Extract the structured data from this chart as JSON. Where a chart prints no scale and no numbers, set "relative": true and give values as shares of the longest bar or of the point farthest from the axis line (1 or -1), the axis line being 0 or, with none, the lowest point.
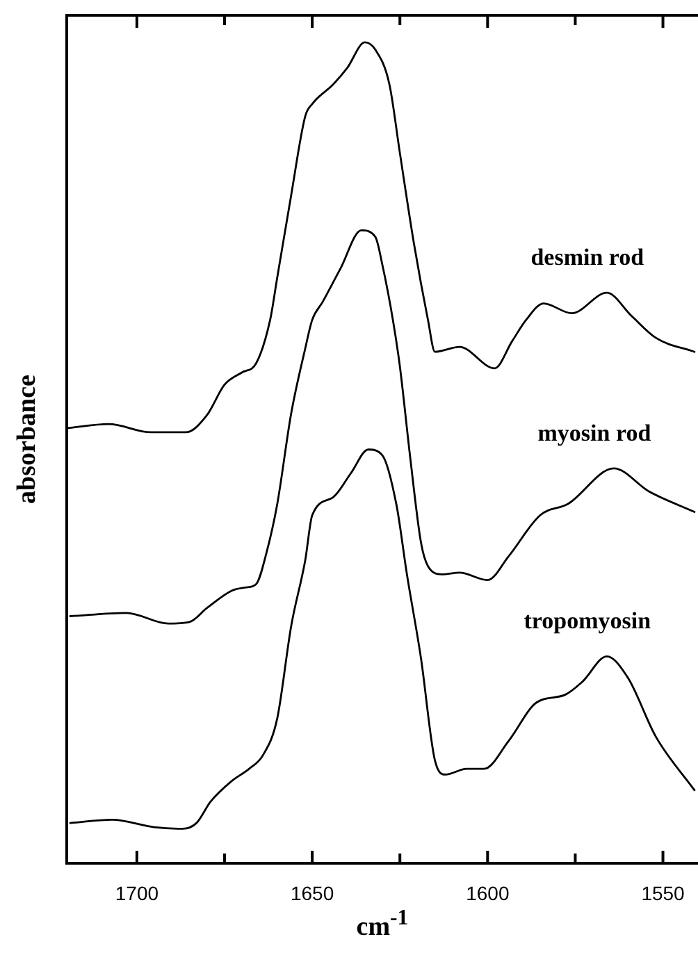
{
  "chart_data": {
    "type": "line",
    "xlabel": "cm$^{-1}$",
    "ylabel": "absorbance",
    "relative": true,
    "legend": false,
    "grid": false,
    "marker": "none",
    "line_style": "solid",
    "xlim": [
      1720,
      1540
    ],
    "xticks": [
      1700,
      {
        "value": 1675,
        "label": null
      },
      1650,
      {
        "value": 1625,
        "label": null
      },
      1600,
      {
        "value": 1575,
        "label": null
      },
      1550
    ],
    "series": [
      {
        "name": "desmin rod",
        "color": "#000000",
        "x": [
          1720,
          1708,
          1696,
          1686,
          1680,
          1675,
          1670,
          1666,
          1662,
          1660,
          1656,
          1652,
          1650,
          1644,
          1640,
          1635,
          1632,
          1628,
          1625,
          1621,
          1617,
          1615,
          1608,
          1598,
          1593,
          1589,
          1584,
          1576,
          1566,
          1559,
          1552,
          1541
        ],
        "values": [
          0.53,
          0.535,
          0.525,
          0.525,
          0.546,
          0.583,
          0.598,
          0.609,
          0.662,
          0.713,
          0.814,
          0.91,
          0.925,
          0.949,
          0.969,
          1.0,
          0.991,
          0.949,
          0.865,
          0.755,
          0.662,
          0.623,
          0.629,
          0.603,
          0.636,
          0.662,
          0.682,
          0.67,
          0.695,
          0.667,
          0.64,
          0.623
        ]
      },
      {
        "name": "myosin rod",
        "color": "#000000",
        "x": [
          1719,
          1703,
          1691,
          1685,
          1680,
          1673,
          1669,
          1666,
          1663,
          1660,
          1656,
          1652,
          1650,
          1647,
          1642,
          1636,
          1632,
          1630,
          1627,
          1625,
          1622,
          1619,
          1617,
          1613,
          1608,
          1600,
          1594,
          1585,
          1577,
          1564,
          1554,
          1541
        ],
        "values": [
          0.301,
          0.305,
          0.292,
          0.294,
          0.311,
          0.332,
          0.336,
          0.34,
          0.379,
          0.437,
          0.548,
          0.627,
          0.662,
          0.684,
          0.724,
          0.771,
          0.763,
          0.729,
          0.662,
          0.605,
          0.492,
          0.391,
          0.362,
          0.352,
          0.354,
          0.345,
          0.374,
          0.424,
          0.438,
          0.481,
          0.453,
          0.428
        ]
      },
      {
        "name": "tropomyosin",
        "color": "#000000",
        "x": [
          1719,
          1707,
          1695,
          1687,
          1683,
          1679,
          1673,
          1668,
          1664,
          1660,
          1656,
          1652,
          1650,
          1644,
          1639,
          1634,
          1630,
          1626,
          1623,
          1619,
          1615,
          1612,
          1606,
          1601,
          1594,
          1586,
          1578,
          1573,
          1566,
          1560,
          1552,
          1541
        ],
        "values": [
          0.049,
          0.053,
          0.044,
          0.042,
          0.049,
          0.075,
          0.1,
          0.115,
          0.132,
          0.176,
          0.289,
          0.369,
          0.424,
          0.446,
          0.475,
          0.504,
          0.497,
          0.437,
          0.352,
          0.25,
          0.125,
          0.108,
          0.115,
          0.115,
          0.149,
          0.196,
          0.205,
          0.221,
          0.252,
          0.226,
          0.154,
          0.089
        ]
      }
    ]
  }
}
